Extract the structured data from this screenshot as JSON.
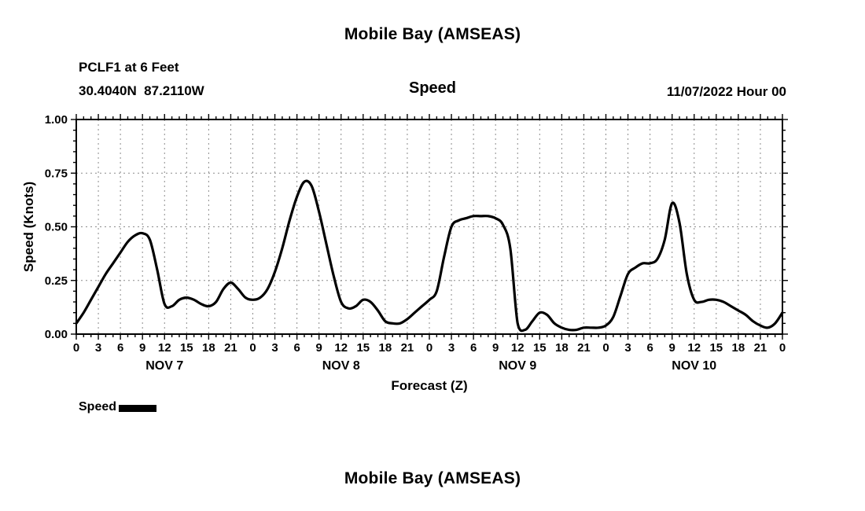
{
  "page": {
    "title": "Mobile Bay (AMSEAS)",
    "bottom_title": "Mobile Bay (AMSEAS)"
  },
  "header": {
    "station": "PCLF1 at 6 Feet",
    "coords": "30.4040N  87.2110W",
    "center_label": "Speed",
    "datetime": "11/07/2022 Hour 00"
  },
  "legend": {
    "label": "Speed"
  },
  "chart_data": {
    "type": "line",
    "title": "Speed",
    "xlabel": "Forecast (Z)",
    "ylabel": "Speed (Knots)",
    "ylim": [
      0,
      1
    ],
    "yticks": [
      0.0,
      0.25,
      0.5,
      0.75,
      1.0
    ],
    "ytick_labels": [
      "0.00",
      "0.25",
      "0.50",
      "0.75",
      "1.00"
    ],
    "y_minor_step": 0.05,
    "xlim": [
      0,
      96
    ],
    "x_major_step": 3,
    "xtick_hours": [
      0,
      3,
      6,
      9,
      12,
      15,
      18,
      21,
      24,
      27,
      30,
      33,
      36,
      39,
      42,
      45,
      48,
      51,
      54,
      57,
      60,
      63,
      66,
      69,
      72,
      75,
      78,
      81,
      84,
      87,
      90,
      93,
      96
    ],
    "xtick_labels": [
      "0",
      "3",
      "6",
      "9",
      "12",
      "15",
      "18",
      "21",
      "0",
      "3",
      "6",
      "9",
      "12",
      "15",
      "18",
      "21",
      "0",
      "3",
      "6",
      "9",
      "12",
      "15",
      "18",
      "21",
      "0",
      "3",
      "6",
      "9",
      "12",
      "15",
      "18",
      "21",
      "0"
    ],
    "day_labels": [
      {
        "label": "NOV 7",
        "hour": 12
      },
      {
        "label": "NOV 8",
        "hour": 36
      },
      {
        "label": "NOV 9",
        "hour": 60
      },
      {
        "label": "NOV 10",
        "hour": 84
      }
    ],
    "grid": true,
    "legend_position": "bottom-left",
    "line_color": "#000000",
    "grid_color": "#8c8c8c",
    "series": [
      {
        "name": "Speed",
        "x": [
          0,
          1,
          2,
          3,
          4,
          5,
          6,
          7,
          8,
          9,
          10,
          11,
          12,
          13,
          14,
          15,
          16,
          17,
          18,
          19,
          20,
          21,
          22,
          23,
          24,
          25,
          26,
          27,
          28,
          29,
          30,
          31,
          32,
          33,
          34,
          35,
          36,
          37,
          38,
          39,
          40,
          41,
          42,
          43,
          44,
          45,
          46,
          47,
          48,
          49,
          50,
          51,
          52,
          53,
          54,
          55,
          56,
          57,
          58,
          59,
          60,
          61,
          62,
          63,
          64,
          65,
          66,
          67,
          68,
          69,
          70,
          71,
          72,
          73,
          74,
          75,
          76,
          77,
          78,
          79,
          80,
          81,
          82,
          83,
          84,
          85,
          86,
          87,
          88,
          89,
          90,
          91,
          92,
          93,
          94,
          95,
          96
        ],
        "values": [
          0.05,
          0.1,
          0.16,
          0.22,
          0.28,
          0.33,
          0.38,
          0.43,
          0.46,
          0.47,
          0.44,
          0.3,
          0.14,
          0.13,
          0.16,
          0.17,
          0.16,
          0.14,
          0.13,
          0.15,
          0.21,
          0.24,
          0.21,
          0.17,
          0.16,
          0.17,
          0.21,
          0.29,
          0.4,
          0.53,
          0.64,
          0.71,
          0.69,
          0.57,
          0.42,
          0.27,
          0.15,
          0.12,
          0.13,
          0.16,
          0.15,
          0.11,
          0.06,
          0.05,
          0.05,
          0.07,
          0.1,
          0.13,
          0.16,
          0.2,
          0.36,
          0.5,
          0.53,
          0.54,
          0.55,
          0.55,
          0.55,
          0.54,
          0.51,
          0.4,
          0.05,
          0.02,
          0.06,
          0.1,
          0.09,
          0.05,
          0.03,
          0.02,
          0.02,
          0.03,
          0.03,
          0.03,
          0.04,
          0.08,
          0.18,
          0.28,
          0.31,
          0.33,
          0.33,
          0.35,
          0.44,
          0.61,
          0.52,
          0.28,
          0.16,
          0.15,
          0.16,
          0.16,
          0.15,
          0.13,
          0.11,
          0.09,
          0.06,
          0.04,
          0.03,
          0.05,
          0.1
        ]
      }
    ]
  }
}
